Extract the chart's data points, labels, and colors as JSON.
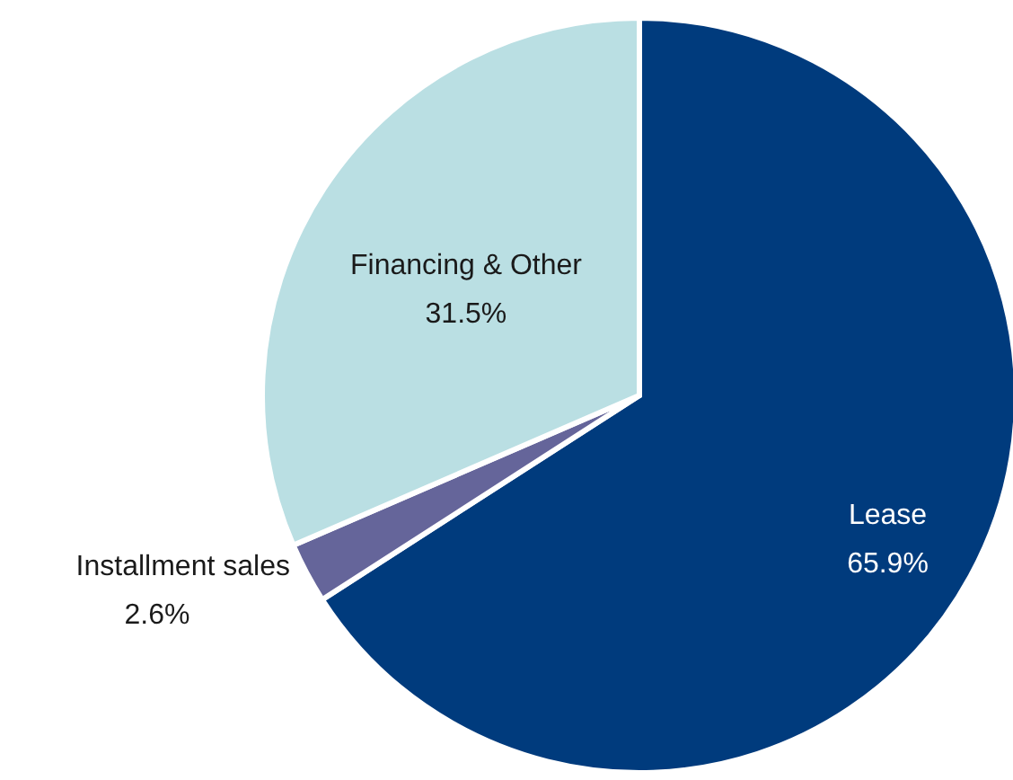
{
  "chart_data": {
    "type": "pie",
    "categories": [
      "Lease",
      "Installment sales",
      "Financing & Other"
    ],
    "values": [
      65.9,
      2.6,
      31.5
    ],
    "value_labels": [
      "65.9%",
      "2.6%",
      "31.5%"
    ],
    "colors": [
      "#003b7d",
      "#65659a",
      "#badfe3"
    ]
  }
}
